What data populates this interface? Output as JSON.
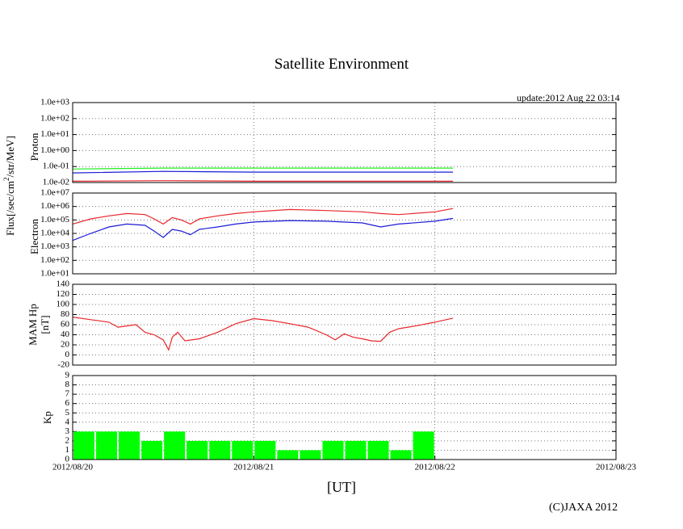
{
  "title": "Satellite Environment",
  "update": "update:2012 Aug 22 03:14",
  "copyright": "(C)JAXA 2012",
  "colors": {
    "red": "#e8262b",
    "blue": "#1b1bd6",
    "green": "#22ee22",
    "kp_bar": "#00ff00",
    "grid": "#777777"
  },
  "chart_data": [
    {
      "id": "proton",
      "type": "line",
      "ylabel": "Proton",
      "shared_ylabel": "Flux[/sec/cm2/str/MeV]",
      "yscale": "log",
      "ylim": [
        0.01,
        1000
      ],
      "yticks": [
        "1.0e+03",
        "1.0e+02",
        "1.0e+01",
        "1.0e+00",
        "1.0e-01",
        "1.0e-02"
      ],
      "ytick_values": [
        1000,
        100,
        10,
        1,
        0.1,
        0.01
      ],
      "grid": true,
      "series": [
        {
          "color": "green",
          "x": [
            0,
            0.5,
            1.0,
            1.5,
            2.1
          ],
          "y": [
            0.07,
            0.08,
            0.08,
            0.08,
            0.08
          ]
        },
        {
          "color": "blue",
          "x": [
            0,
            0.5,
            1.0,
            1.5,
            2.1
          ],
          "y": [
            0.04,
            0.05,
            0.045,
            0.045,
            0.045
          ]
        },
        {
          "color": "red",
          "x": [
            0,
            0.5,
            1.0,
            1.5,
            2.1
          ],
          "y": [
            0.012,
            0.013,
            0.012,
            0.012,
            0.012
          ]
        }
      ]
    },
    {
      "id": "electron",
      "type": "line",
      "ylabel": "Electron",
      "yscale": "log",
      "ylim": [
        10,
        10000000
      ],
      "yticks": [
        "1.0e+07",
        "1.0e+06",
        "1.0e+05",
        "1.0e+04",
        "1.0e+03",
        "1.0e+02",
        "1.0e+01"
      ],
      "ytick_values": [
        10000000,
        1000000,
        100000,
        10000,
        1000,
        100,
        10
      ],
      "grid": true,
      "series": [
        {
          "color": "red",
          "x": [
            0,
            0.1,
            0.2,
            0.3,
            0.4,
            0.45,
            0.5,
            0.55,
            0.6,
            0.65,
            0.7,
            0.8,
            0.9,
            1.0,
            1.2,
            1.4,
            1.6,
            1.7,
            1.8,
            2.0,
            2.1
          ],
          "y": [
            50000,
            120000,
            200000,
            300000,
            250000,
            120000,
            50000,
            150000,
            100000,
            50000,
            120000,
            200000,
            300000,
            400000,
            600000,
            500000,
            400000,
            300000,
            250000,
            400000,
            700000
          ]
        },
        {
          "color": "blue",
          "x": [
            0,
            0.1,
            0.2,
            0.3,
            0.4,
            0.45,
            0.5,
            0.55,
            0.6,
            0.65,
            0.7,
            0.8,
            0.9,
            1.0,
            1.2,
            1.4,
            1.6,
            1.7,
            1.8,
            2.0,
            2.1
          ],
          "y": [
            3000,
            10000,
            30000,
            50000,
            40000,
            15000,
            5000,
            20000,
            15000,
            8000,
            20000,
            30000,
            50000,
            70000,
            90000,
            80000,
            60000,
            30000,
            50000,
            80000,
            130000
          ]
        }
      ]
    },
    {
      "id": "mam_hp",
      "type": "line",
      "ylabel": "MAM Hp",
      "ylabel2": "[nT]",
      "yscale": "linear",
      "ylim": [
        -20,
        140
      ],
      "yticks": [
        "140",
        "120",
        "100",
        "80",
        "60",
        "40",
        "20",
        "0",
        "-20"
      ],
      "ytick_values": [
        140,
        120,
        100,
        80,
        60,
        40,
        20,
        0,
        -20
      ],
      "grid": true,
      "series": [
        {
          "color": "red",
          "x": [
            0,
            0.1,
            0.2,
            0.25,
            0.35,
            0.4,
            0.45,
            0.5,
            0.53,
            0.55,
            0.58,
            0.62,
            0.7,
            0.8,
            0.9,
            1.0,
            1.1,
            1.2,
            1.3,
            1.4,
            1.45,
            1.5,
            1.55,
            1.6,
            1.65,
            1.7,
            1.75,
            1.8,
            1.9,
            2.0,
            2.1
          ],
          "y": [
            75,
            70,
            65,
            55,
            60,
            45,
            40,
            30,
            10,
            35,
            45,
            28,
            32,
            45,
            62,
            72,
            68,
            62,
            55,
            40,
            30,
            42,
            35,
            32,
            28,
            27,
            45,
            52,
            58,
            65,
            73
          ]
        }
      ]
    },
    {
      "id": "kp",
      "type": "bar",
      "ylabel": "Kp",
      "yscale": "linear",
      "ylim": [
        0,
        9
      ],
      "yticks": [
        "9",
        "8",
        "7",
        "6",
        "5",
        "4",
        "3",
        "2",
        "1",
        "0"
      ],
      "ytick_values": [
        9,
        8,
        7,
        6,
        5,
        4,
        3,
        2,
        1,
        0
      ],
      "grid": true,
      "bar_width_days": 0.125,
      "bar_starts": [
        0,
        0.125,
        0.25,
        0.375,
        0.5,
        0.625,
        0.75,
        0.875,
        1.0,
        1.125,
        1.25,
        1.375,
        1.5,
        1.625,
        1.75,
        1.875
      ],
      "values": [
        3,
        3,
        3,
        2,
        3,
        2,
        2,
        2,
        2,
        1,
        1,
        2,
        2,
        2,
        1,
        3
      ]
    }
  ],
  "x_axis": {
    "label": "[UT]",
    "ticks": [
      "2012/08/20",
      "2012/08/21",
      "2012/08/22",
      "2012/08/23"
    ],
    "tick_days": [
      0,
      1,
      2,
      3
    ],
    "range_days": [
      0,
      3
    ]
  }
}
